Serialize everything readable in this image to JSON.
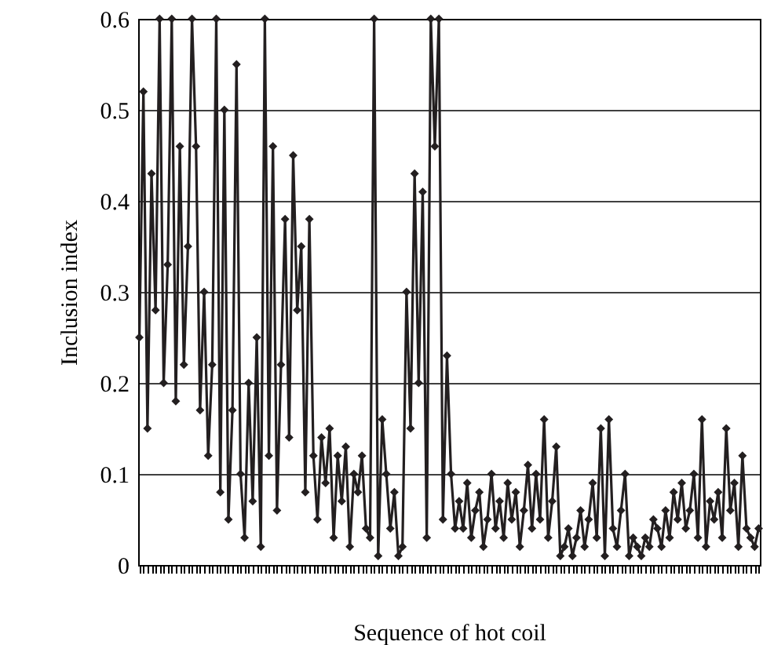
{
  "chart_data": {
    "type": "line",
    "xlabel": "Sequence of hot coil",
    "ylabel": "Inclusion index",
    "categories": [
      null,
      null,
      null,
      null,
      null,
      null,
      null,
      null,
      null,
      null,
      null,
      null,
      null,
      null,
      null,
      null,
      null,
      null,
      null,
      null,
      null,
      null,
      null,
      null,
      null,
      null,
      null,
      null,
      null,
      null,
      null,
      null,
      null,
      null,
      null,
      null,
      null,
      null,
      null,
      null,
      null,
      null,
      null,
      null,
      null,
      null,
      null,
      null,
      null,
      null,
      null,
      null,
      null,
      null,
      null,
      null,
      null,
      null,
      null,
      null,
      null,
      null,
      null,
      null,
      null,
      null,
      null,
      null,
      null,
      null,
      null,
      null,
      null,
      null,
      null,
      null,
      null,
      null,
      null,
      null,
      null,
      null,
      null,
      null,
      null,
      null,
      null,
      null,
      null,
      null,
      null,
      null,
      null,
      null,
      null,
      null,
      null,
      null,
      null,
      null,
      null,
      null,
      null,
      null,
      null,
      null,
      null,
      null,
      null,
      null,
      null,
      null,
      null,
      null,
      null,
      null,
      null,
      null,
      null,
      null,
      null,
      null,
      null,
      null,
      null,
      null,
      null,
      null,
      null,
      null,
      null,
      null,
      null,
      null,
      null,
      null,
      null,
      null,
      null,
      null,
      null,
      null,
      null,
      null,
      null,
      null,
      null,
      null,
      null,
      null,
      null,
      null,
      null,
      null
    ],
    "series": [
      {
        "color": "#231f20",
        "values": [
          0.25,
          0.52,
          0.15,
          0.43,
          0.28,
          0.6,
          0.2,
          0.33,
          0.6,
          0.18,
          0.46,
          0.22,
          0.35,
          0.6,
          0.46,
          0.17,
          0.3,
          0.12,
          0.22,
          0.6,
          0.08,
          0.5,
          0.05,
          0.17,
          0.55,
          0.1,
          0.03,
          0.2,
          0.07,
          0.25,
          0.02,
          0.6,
          0.12,
          0.46,
          0.06,
          0.22,
          0.38,
          0.14,
          0.45,
          0.28,
          0.35,
          0.08,
          0.38,
          0.12,
          0.05,
          0.14,
          0.09,
          0.15,
          0.03,
          0.12,
          0.07,
          0.13,
          0.02,
          0.1,
          0.08,
          0.12,
          0.04,
          0.03,
          0.6,
          0.01,
          0.16,
          0.1,
          0.04,
          0.08,
          0.01,
          0.02,
          0.3,
          0.15,
          0.43,
          0.2,
          0.41,
          0.03,
          0.6,
          0.46,
          0.6,
          0.05,
          0.23,
          0.1,
          0.04,
          0.07,
          0.04,
          0.09,
          0.03,
          0.06,
          0.08,
          0.02,
          0.05,
          0.1,
          0.04,
          0.07,
          0.03,
          0.09,
          0.05,
          0.08,
          0.02,
          0.06,
          0.11,
          0.04,
          0.1,
          0.05,
          0.16,
          0.03,
          0.07,
          0.13,
          0.01,
          0.02,
          0.04,
          0.01,
          0.03,
          0.06,
          0.02,
          0.05,
          0.09,
          0.03,
          0.15,
          0.01,
          0.16,
          0.04,
          0.02,
          0.06,
          0.1,
          0.01,
          0.03,
          0.02,
          0.01,
          0.03,
          0.02,
          0.05,
          0.04,
          0.02,
          0.06,
          0.03,
          0.08,
          0.05,
          0.09,
          0.04,
          0.06,
          0.1,
          0.03,
          0.16,
          0.02,
          0.07,
          0.05,
          0.08,
          0.03,
          0.15,
          0.06,
          0.09,
          0.02,
          0.12,
          0.04,
          0.03,
          0.02,
          0.04
        ]
      }
    ],
    "ylim": [
      0,
      0.6
    ],
    "yticks": [
      0,
      0.1,
      0.2,
      0.3,
      0.4,
      0.5,
      0.6
    ],
    "grid": "y",
    "tick_labels": "y",
    "marker": "diamond",
    "line_style": "solid"
  }
}
